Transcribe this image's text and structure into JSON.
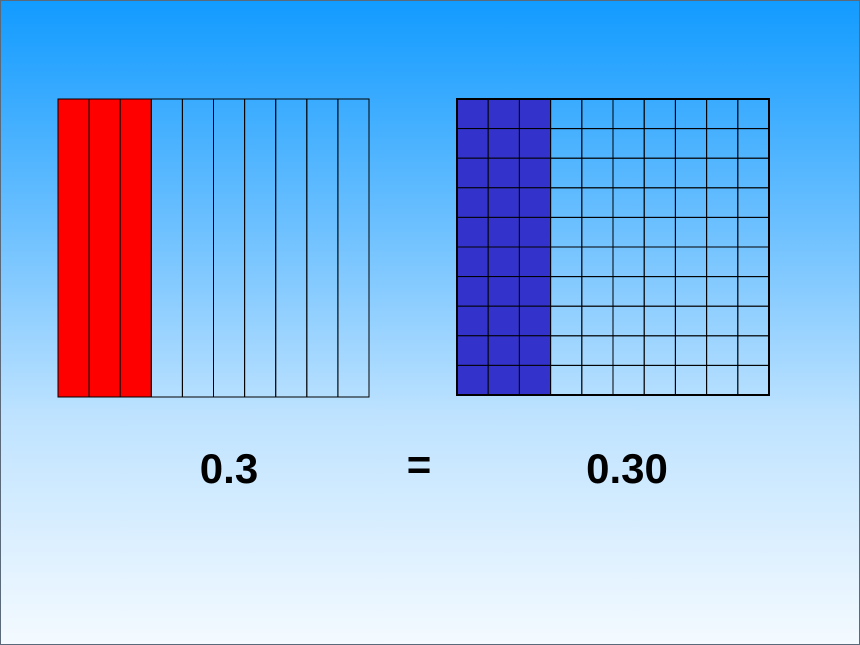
{
  "left_grid": {
    "columns": 10,
    "shaded_columns": 3,
    "shade_color": "#ff0000"
  },
  "right_grid": {
    "rows": 10,
    "columns": 10,
    "shaded_columns": 3,
    "shade_color": "#3333cc"
  },
  "labels": {
    "left": "0.3",
    "equals": "=",
    "right": "0.30"
  }
}
